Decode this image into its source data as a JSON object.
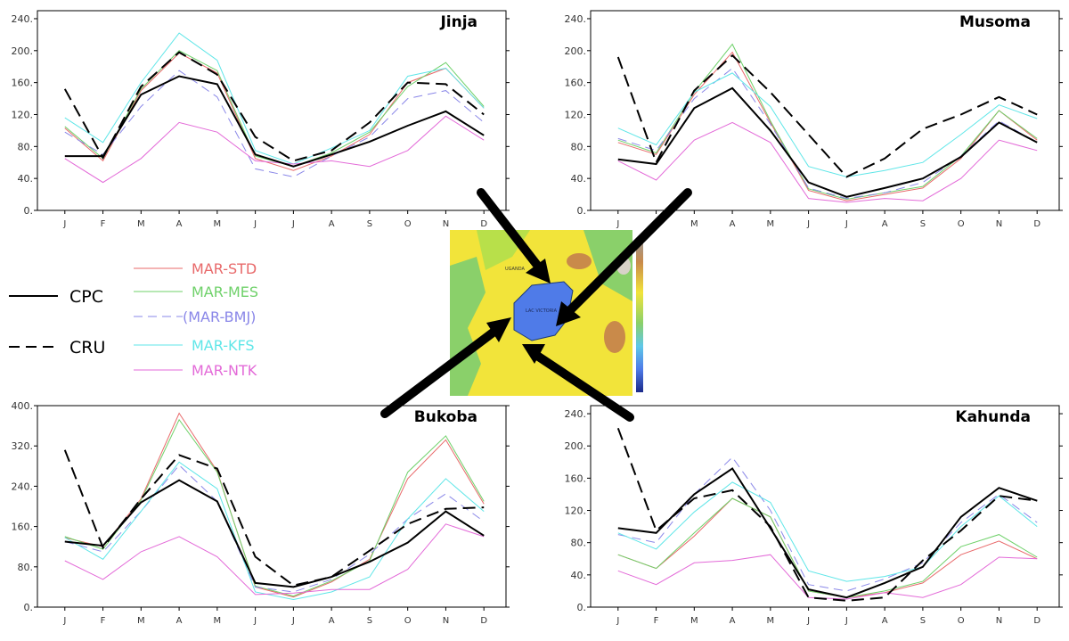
{
  "legend": {
    "items": [
      {
        "label": "MAR-STD",
        "color": "#e8696a",
        "style": "solid",
        "width": 1
      },
      {
        "label": "MAR-MES",
        "color": "#6fd16a",
        "style": "solid",
        "width": 1
      },
      {
        "label": "(MAR-BMJ)",
        "color": "#8a87e8",
        "style": "dashed",
        "width": 1
      },
      {
        "label": "MAR-KFS",
        "color": "#5fe6e8",
        "style": "solid",
        "width": 1
      },
      {
        "label": "MAR-NTK",
        "color": "#e36ad8",
        "style": "solid",
        "width": 1
      },
      {
        "label": "CPC",
        "color": "#000000",
        "style": "solid",
        "width": 2
      },
      {
        "label": "CRU",
        "color": "#000000",
        "style": "dashed",
        "width": 2
      }
    ]
  },
  "map": {
    "labels": [
      "UGANDA",
      "LAC VICTORIA"
    ],
    "colors": {
      "land": "#f2e43a",
      "lake": "#4f7be8",
      "highland": "#c98a4a",
      "green": "#8ad06a"
    }
  },
  "chart_data": [
    {
      "type": "line",
      "title": "Jinja",
      "categories": [
        "J",
        "F",
        "M",
        "A",
        "M",
        "J",
        "J",
        "A",
        "S",
        "O",
        "N",
        "D"
      ],
      "ylim": [
        0,
        250
      ],
      "yticks": [
        0,
        40,
        80,
        120,
        160,
        200,
        240
      ],
      "ytick_labels": [
        "0.",
        "40.",
        "80.",
        "120.",
        "160.",
        "200.",
        "240."
      ],
      "series": [
        {
          "name": "MAR-STD",
          "values": [
            103,
            62,
            150,
            197,
            172,
            65,
            50,
            68,
            95,
            160,
            178,
            128
          ]
        },
        {
          "name": "MAR-MES",
          "values": [
            105,
            65,
            152,
            200,
            175,
            68,
            55,
            72,
            98,
            155,
            185,
            130
          ]
        },
        {
          "name": "(MAR-BMJ)",
          "values": [
            98,
            70,
            130,
            175,
            142,
            52,
            42,
            68,
            92,
            140,
            150,
            110
          ]
        },
        {
          "name": "MAR-KFS",
          "values": [
            116,
            85,
            160,
            222,
            188,
            75,
            58,
            78,
            100,
            168,
            178,
            128
          ]
        },
        {
          "name": "MAR-NTK",
          "values": [
            65,
            35,
            65,
            110,
            98,
            62,
            58,
            62,
            55,
            75,
            118,
            88
          ]
        },
        {
          "name": "CPC",
          "values": [
            68,
            68,
            145,
            168,
            158,
            70,
            55,
            70,
            86,
            106,
            124,
            94
          ]
        },
        {
          "name": "CRU",
          "values": [
            152,
            66,
            155,
            198,
            170,
            92,
            62,
            75,
            110,
            160,
            158,
            120
          ]
        }
      ]
    },
    {
      "type": "line",
      "title": "Musoma",
      "categories": [
        "J",
        "F",
        "M",
        "A",
        "M",
        "J",
        "J",
        "A",
        "S",
        "O",
        "N",
        "D"
      ],
      "ylim": [
        0,
        250
      ],
      "yticks": [
        0,
        40,
        80,
        120,
        160,
        200,
        240
      ],
      "ytick_labels": [
        "0.",
        "40.",
        "80.",
        "120.",
        "160.",
        "200.",
        "240."
      ],
      "series": [
        {
          "name": "MAR-STD",
          "values": [
            85,
            70,
            145,
            198,
            110,
            25,
            12,
            20,
            28,
            65,
            125,
            88
          ]
        },
        {
          "name": "MAR-MES",
          "values": [
            88,
            72,
            148,
            208,
            112,
            27,
            14,
            22,
            30,
            68,
            125,
            90
          ]
        },
        {
          "name": "(MAR-BMJ)",
          "values": [
            90,
            75,
            140,
            178,
            108,
            28,
            15,
            22,
            35,
            68,
            112,
            85
          ]
        },
        {
          "name": "MAR-KFS",
          "values": [
            103,
            82,
            148,
            172,
            130,
            55,
            42,
            50,
            60,
            95,
            132,
            115
          ]
        },
        {
          "name": "MAR-NTK",
          "values": [
            62,
            38,
            88,
            110,
            85,
            15,
            10,
            15,
            12,
            40,
            88,
            75
          ]
        },
        {
          "name": "CPC",
          "values": [
            64,
            58,
            128,
            153,
            100,
            35,
            17,
            28,
            40,
            67,
            110,
            85
          ]
        },
        {
          "name": "CRU",
          "values": [
            192,
            60,
            150,
            194,
            148,
            95,
            42,
            65,
            102,
            120,
            142,
            120
          ]
        }
      ]
    },
    {
      "type": "line",
      "title": "Bukoba",
      "categories": [
        "J",
        "F",
        "M",
        "A",
        "M",
        "J",
        "J",
        "A",
        "S",
        "O",
        "N",
        "D"
      ],
      "ylim": [
        0,
        400
      ],
      "yticks": [
        0,
        80,
        160,
        240,
        320,
        400
      ],
      "ytick_labels": [
        "0.",
        "80.",
        "160.",
        "240.",
        "320.",
        "400."
      ],
      "series": [
        {
          "name": "MAR-STD",
          "values": [
            138,
            120,
            215,
            385,
            270,
            40,
            20,
            50,
            95,
            255,
            332,
            205
          ]
        },
        {
          "name": "MAR-MES",
          "values": [
            140,
            115,
            212,
            372,
            268,
            42,
            22,
            52,
            92,
            268,
            340,
            210
          ]
        },
        {
          "name": "(MAR-BMJ)",
          "values": [
            130,
            110,
            190,
            282,
            210,
            40,
            30,
            55,
            105,
            175,
            225,
            170
          ]
        },
        {
          "name": "MAR-KFS",
          "values": [
            138,
            95,
            190,
            288,
            235,
            30,
            15,
            30,
            60,
            175,
            255,
            190
          ]
        },
        {
          "name": "MAR-NTK",
          "values": [
            92,
            55,
            110,
            140,
            100,
            25,
            28,
            35,
            35,
            75,
            165,
            140
          ]
        },
        {
          "name": "CPC",
          "values": [
            130,
            122,
            208,
            252,
            210,
            48,
            40,
            60,
            90,
            128,
            190,
            142
          ]
        },
        {
          "name": "CRU",
          "values": [
            312,
            118,
            215,
            302,
            275,
            100,
            43,
            60,
            112,
            165,
            195,
            198
          ]
        }
      ]
    },
    {
      "type": "line",
      "title": "Kahunda",
      "categories": [
        "J",
        "F",
        "M",
        "A",
        "M",
        "J",
        "J",
        "A",
        "S",
        "O",
        "N",
        "D"
      ],
      "ylim": [
        0,
        250
      ],
      "yticks": [
        0,
        40,
        80,
        120,
        160,
        200,
        240
      ],
      "ytick_labels": [
        "0.",
        "40.",
        "80.",
        "120.",
        "160.",
        "200.",
        "240."
      ],
      "series": [
        {
          "name": "MAR-STD",
          "values": [
            65,
            48,
            88,
            135,
            112,
            20,
            12,
            18,
            30,
            65,
            82,
            60
          ]
        },
        {
          "name": "MAR-MES",
          "values": [
            65,
            48,
            92,
            135,
            112,
            20,
            12,
            20,
            32,
            75,
            90,
            62
          ]
        },
        {
          "name": "(MAR-BMJ)",
          "values": [
            90,
            80,
            140,
            186,
            120,
            28,
            20,
            35,
            55,
            105,
            140,
            105
          ]
        },
        {
          "name": "MAR-KFS",
          "values": [
            92,
            72,
            118,
            155,
            130,
            45,
            32,
            38,
            50,
            100,
            138,
            100
          ]
        },
        {
          "name": "MAR-NTK",
          "values": [
            45,
            28,
            55,
            58,
            65,
            12,
            10,
            18,
            12,
            28,
            62,
            60
          ]
        },
        {
          "name": "CPC",
          "values": [
            98,
            92,
            140,
            172,
            98,
            22,
            12,
            30,
            50,
            112,
            148,
            132
          ]
        },
        {
          "name": "CRU",
          "values": [
            222,
            95,
            135,
            145,
            100,
            12,
            8,
            12,
            58,
            95,
            138,
            132
          ]
        }
      ]
    }
  ]
}
